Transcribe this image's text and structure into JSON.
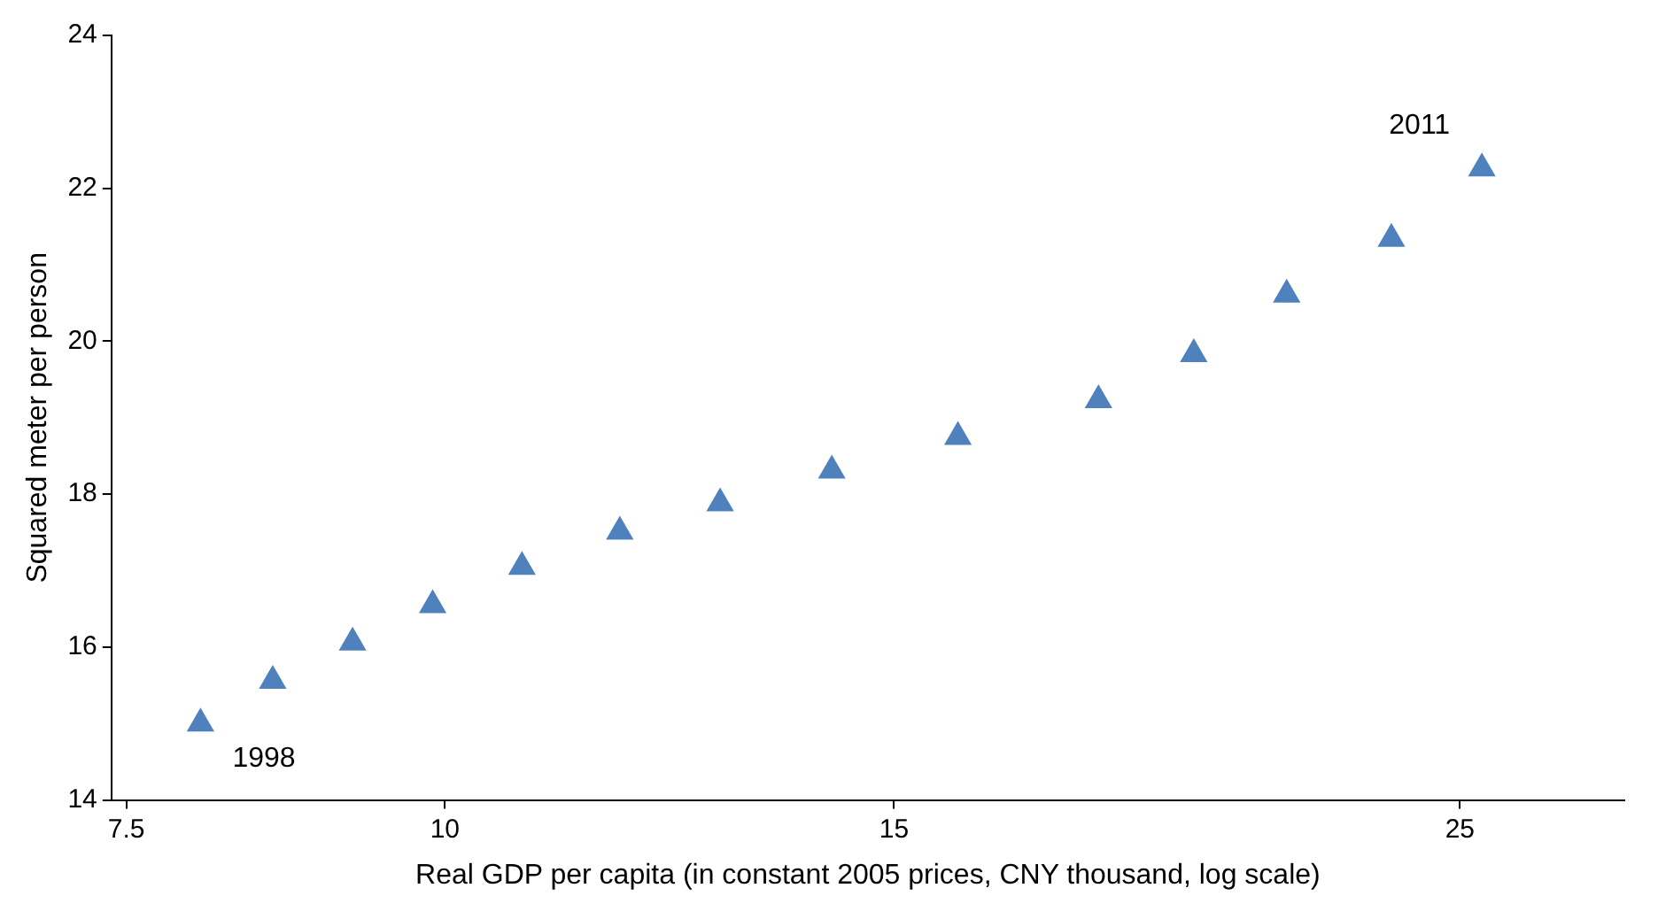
{
  "chart_data": {
    "type": "scatter",
    "xlabel": "Real GDP per capita (in constant 2005 prices, CNY thousand, log scale)",
    "ylabel": "Squared meter per person",
    "x": [
      8.02,
      8.56,
      9.2,
      9.89,
      10.72,
      11.71,
      12.82,
      14.18,
      15.89,
      18.04,
      19.66,
      21.38,
      23.5,
      25.5
    ],
    "series": [
      {
        "color": "#4f81bd",
        "values": [
          15.0,
          15.56,
          16.06,
          16.55,
          17.05,
          17.51,
          17.88,
          18.31,
          18.75,
          19.23,
          19.83,
          20.61,
          21.34,
          22.26
        ]
      }
    ],
    "xlim": [
      7.4,
      29
    ],
    "xticks": [
      7.5,
      10,
      15,
      25
    ],
    "ylim": [
      14,
      24
    ],
    "yticks": [
      14,
      16,
      18,
      20,
      22,
      24
    ],
    "log": "x",
    "grid": false,
    "legend": false,
    "marker": "triangle",
    "annotations": [
      {
        "text": "1998",
        "x": 8.02,
        "y": 15.0
      },
      {
        "text": "2011",
        "x": 25.5,
        "y": 22.26
      }
    ]
  }
}
